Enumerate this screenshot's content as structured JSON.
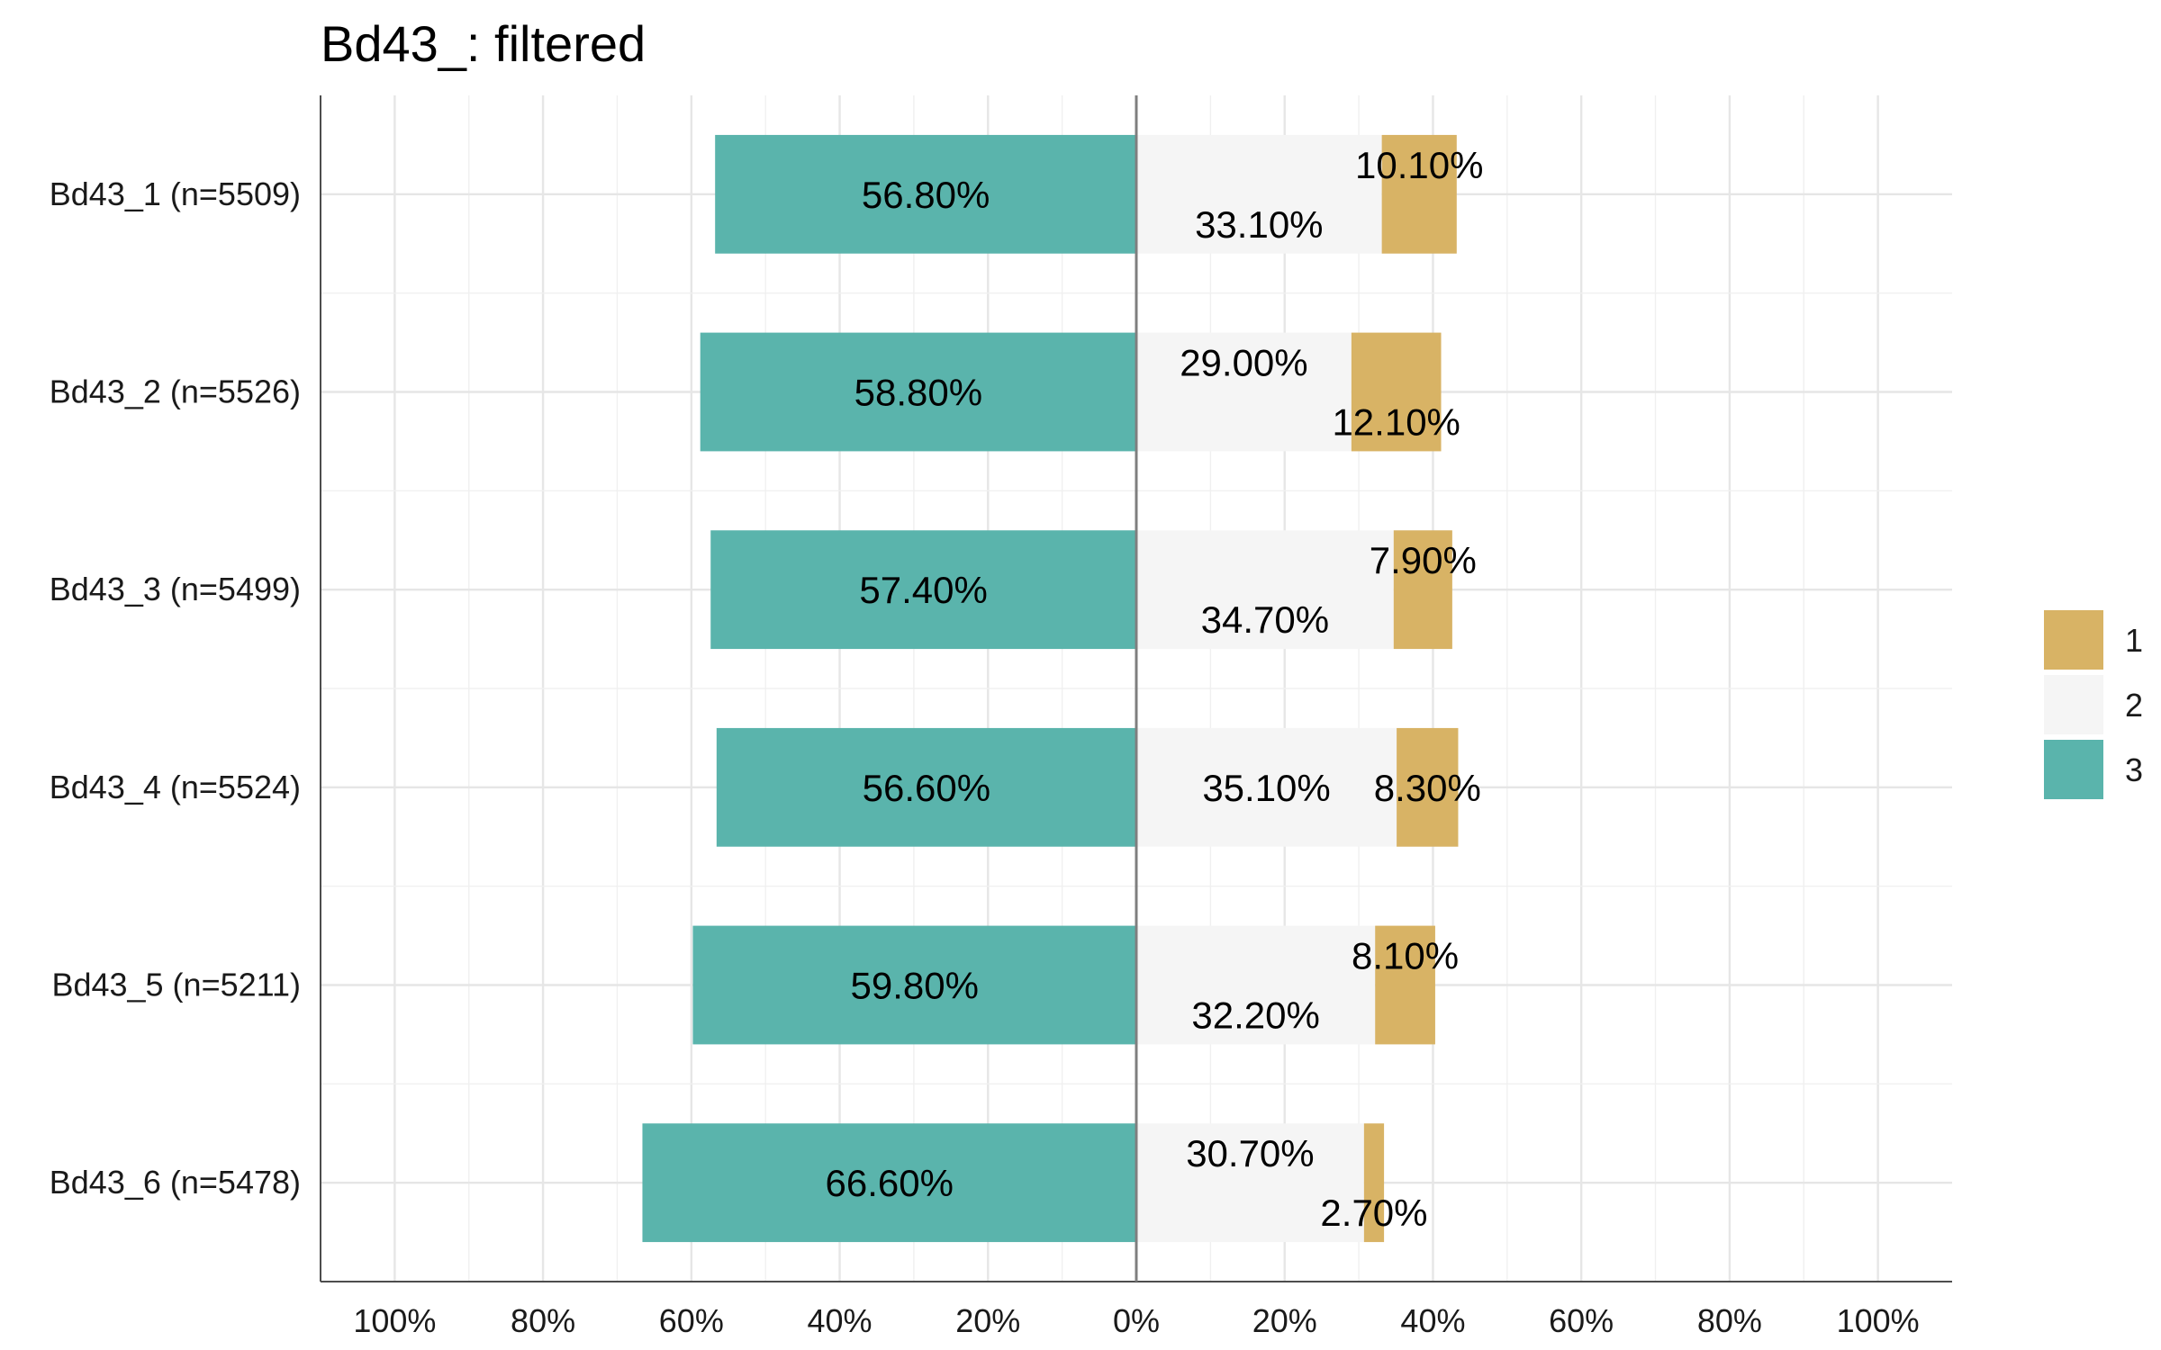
{
  "chart_data": {
    "type": "bar",
    "orientation": "horizontal-diverging",
    "title": "Bd43_: filtered",
    "xlabel": "",
    "ylabel": "",
    "xlim": [
      -110,
      110
    ],
    "x_ticks": [
      -100,
      -80,
      -60,
      -40,
      -20,
      0,
      20,
      40,
      60,
      80,
      100
    ],
    "x_tick_labels": [
      "100%",
      "80%",
      "60%",
      "40%",
      "20%",
      "0%",
      "20%",
      "40%",
      "60%",
      "80%",
      "100%"
    ],
    "grid": true,
    "legend_position": "right",
    "categories": [
      "Bd43_1 (n=5509)",
      "Bd43_2 (n=5526)",
      "Bd43_3 (n=5499)",
      "Bd43_4 (n=5524)",
      "Bd43_5 (n=5211)",
      "Bd43_6 (n=5478)"
    ],
    "series": [
      {
        "name": "1",
        "color": "#d8b365",
        "side": "right",
        "values": [
          10.1,
          12.1,
          7.9,
          8.3,
          8.1,
          2.7
        ],
        "labels": [
          "10.10%",
          "12.10%",
          "7.90%",
          "8.30%",
          "8.10%",
          "2.70%"
        ]
      },
      {
        "name": "2",
        "color": "#f5f5f5",
        "side": "right",
        "values": [
          33.1,
          29.0,
          34.7,
          35.1,
          32.2,
          30.7
        ],
        "labels": [
          "33.10%",
          "29.00%",
          "34.70%",
          "35.10%",
          "32.20%",
          "30.70%"
        ]
      },
      {
        "name": "3",
        "color": "#5ab4ac",
        "side": "left",
        "values": [
          56.8,
          58.8,
          57.4,
          56.6,
          59.8,
          66.6
        ],
        "labels": [
          "56.80%",
          "58.80%",
          "57.40%",
          "56.60%",
          "59.80%",
          "66.60%"
        ]
      }
    ]
  }
}
